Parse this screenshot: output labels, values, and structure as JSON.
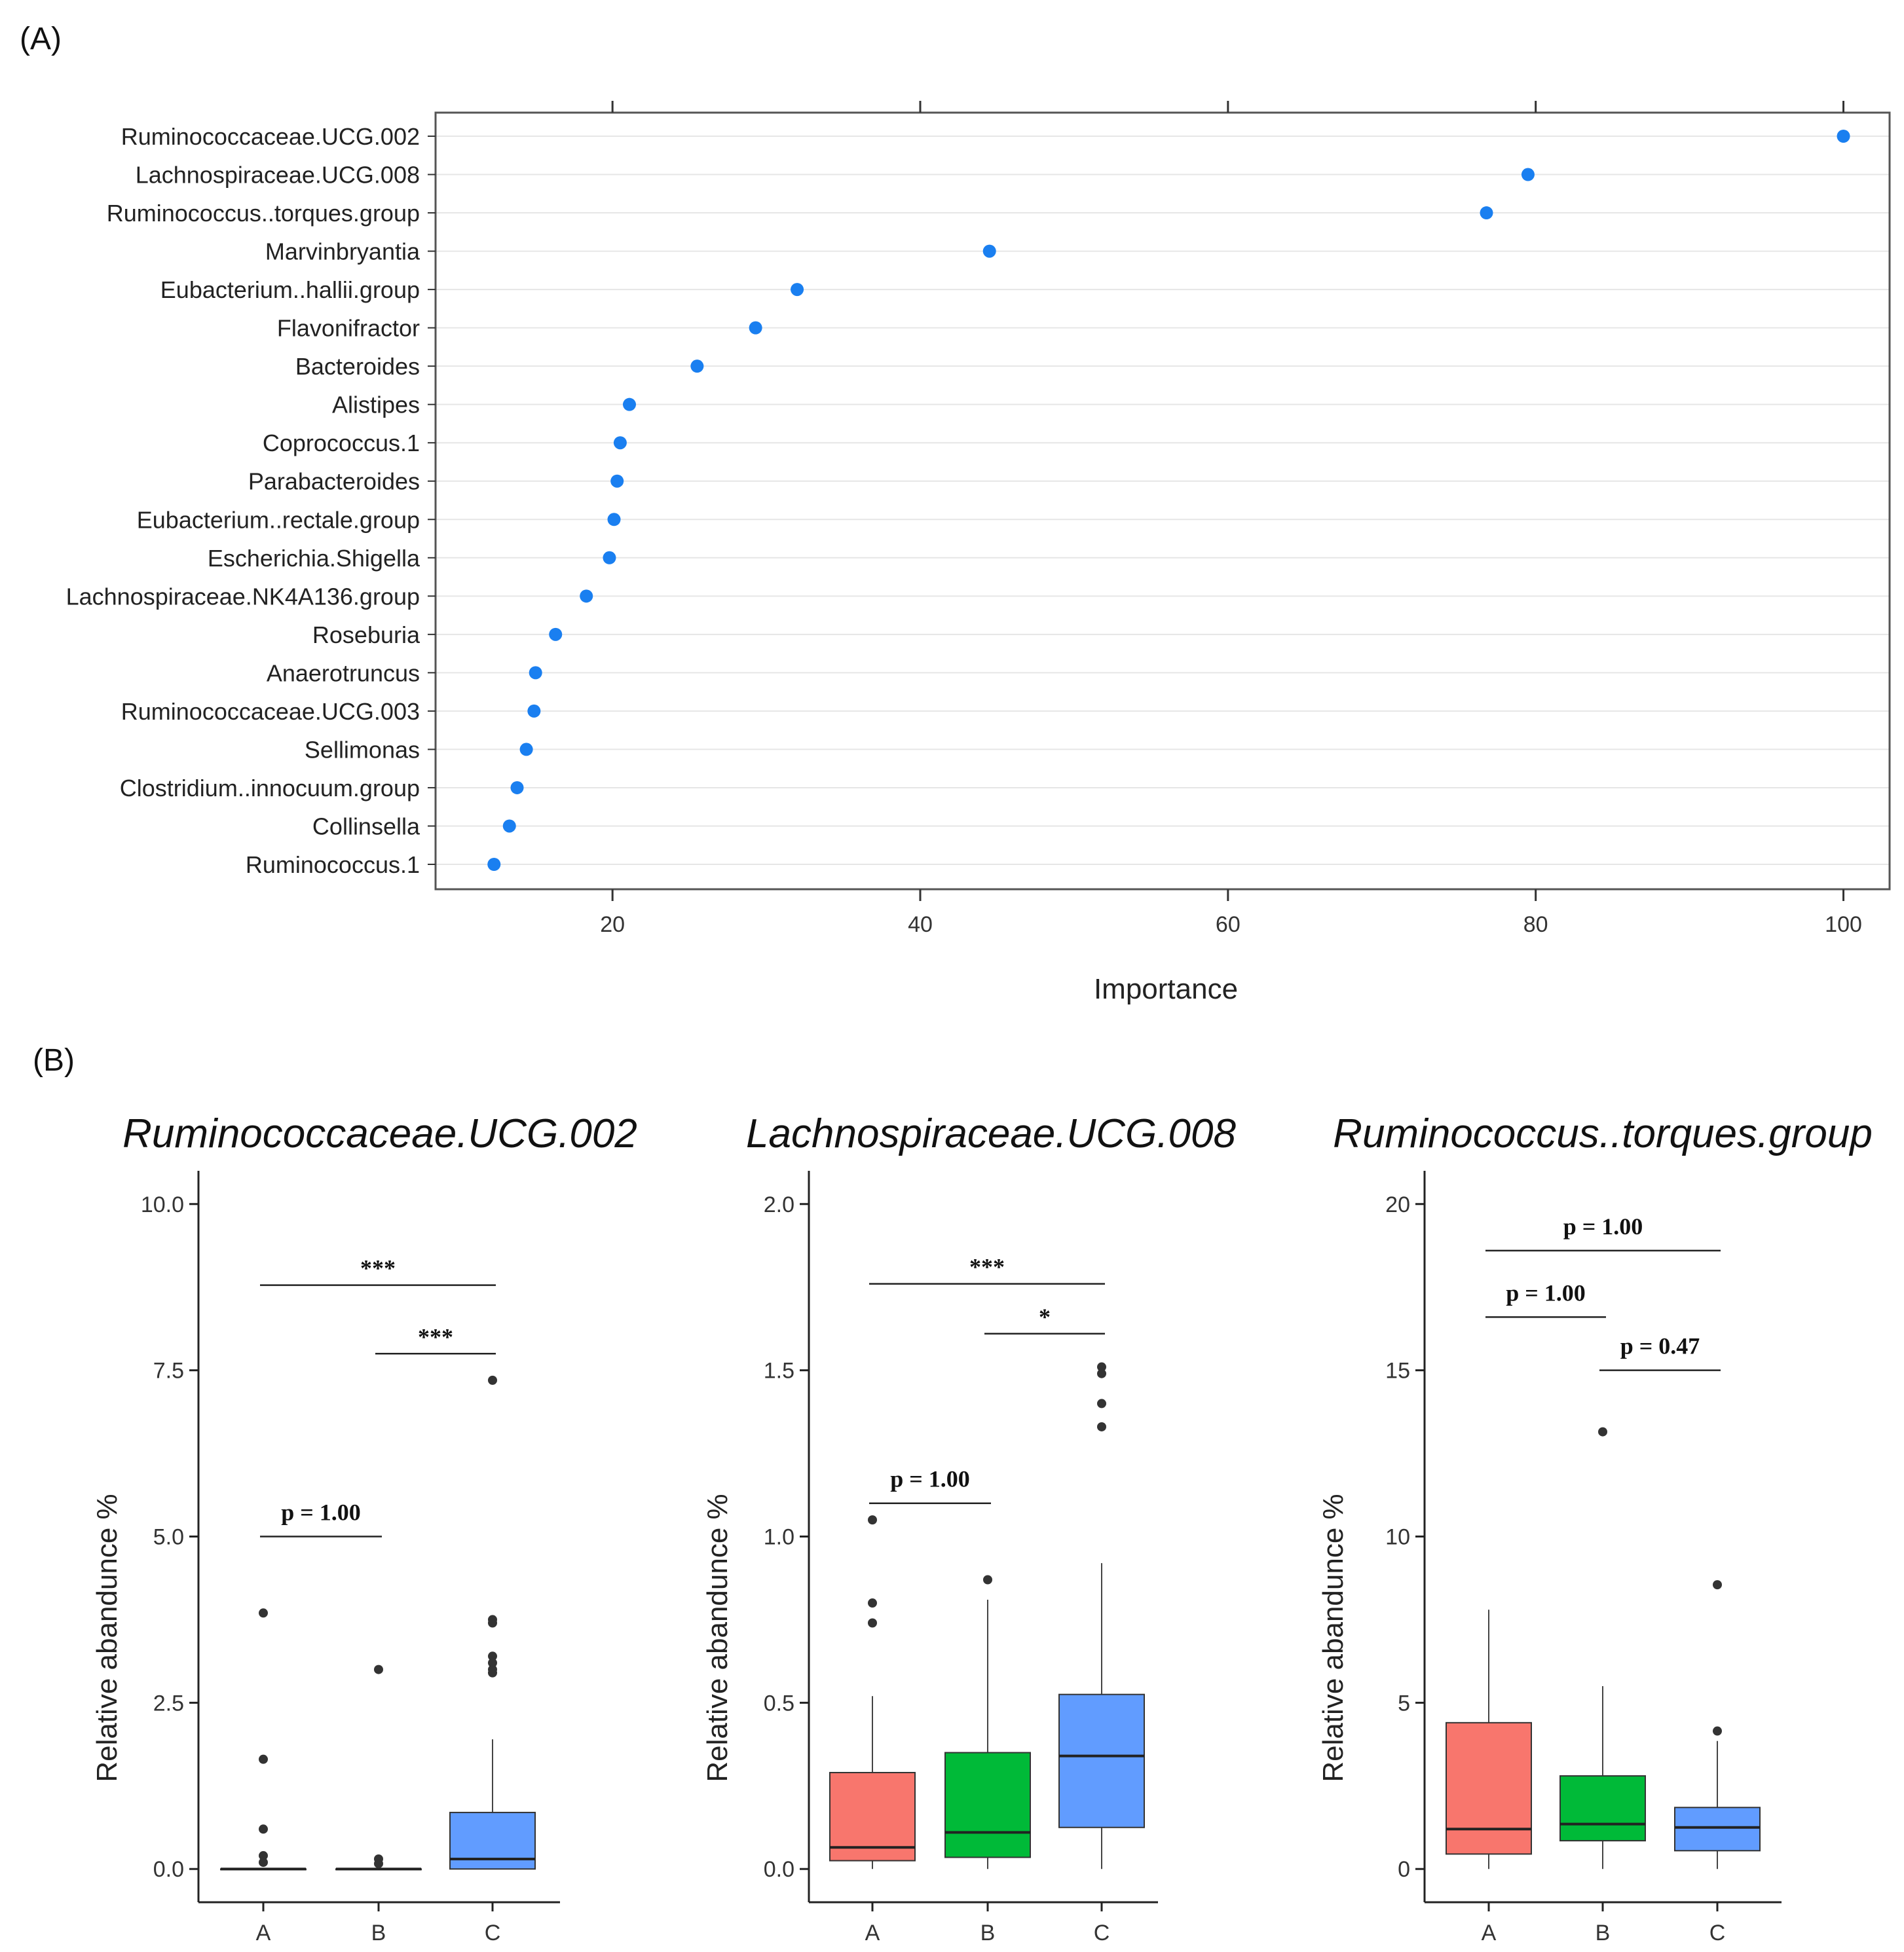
{
  "panelA": {
    "label": "(A)",
    "chart_data": {
      "type": "scatter",
      "xlabel": "Importance",
      "xlim": [
        8.5,
        103
      ],
      "xticks": [
        20,
        40,
        60,
        80,
        100
      ],
      "tick_labels": [
        "20",
        "40",
        "60",
        "80",
        "100"
      ],
      "categories": [
        "Ruminococcaceae.UCG.002",
        "Lachnospiraceae.UCG.008",
        "Ruminococcus..torques.group",
        "Marvinbryantia",
        "Eubacterium..hallii.group",
        "Flavonifractor",
        "Bacteroides",
        "Alistipes",
        "Coprococcus.1",
        "Parabacteroides",
        "Eubacterium..rectale.group",
        "Escherichia.Shigella",
        "Lachnospiraceae.NK4A136.group",
        "Roseburia",
        "Anaerotruncus",
        "Ruminococcaceae.UCG.003",
        "Sellimonas",
        "Clostridium..innocuum.group",
        "Collinsella",
        "Ruminococcus.1"
      ],
      "values": [
        100,
        79.5,
        76.8,
        44.5,
        32.0,
        29.3,
        25.5,
        21.1,
        20.5,
        20.3,
        20.1,
        19.8,
        18.3,
        16.3,
        15.0,
        14.9,
        14.4,
        13.8,
        13.3,
        12.3
      ],
      "point_color": "#1a7ff0"
    }
  },
  "panelB": {
    "label": "(B)",
    "chart_data": [
      {
        "type": "box",
        "title": "Ruminococcaceae.UCG.002",
        "ylabel": "Relative abandunce %",
        "ylim": [
          -0.5,
          10.5
        ],
        "yticks": [
          0,
          2.5,
          5,
          7.5,
          10
        ],
        "ytick_labels": [
          "0.0",
          "2.5",
          "5.0",
          "7.5",
          "10.0"
        ],
        "categories": [
          "A",
          "B",
          "C"
        ],
        "colors": [
          "#f8766d",
          "#00ba38",
          "#619cff"
        ],
        "boxes": [
          {
            "group": "A",
            "min": 0,
            "q1": 0,
            "median": 0,
            "q3": 0,
            "max": 0,
            "outliers": [
              3.85,
              1.65,
              0.6,
              0.2,
              0.1
            ]
          },
          {
            "group": "B",
            "min": 0,
            "q1": 0,
            "median": 0,
            "q3": 0,
            "max": 0,
            "outliers": [
              3.0,
              0.15,
              0.08
            ]
          },
          {
            "group": "C",
            "min": 0,
            "q1": 0,
            "median": 0.15,
            "q3": 0.85,
            "max": 1.95,
            "outliers": [
              7.35,
              3.75,
              3.7,
              3.2,
              3.1,
              3.0,
              2.95
            ]
          }
        ],
        "comparisons": [
          {
            "from": "A",
            "to": "B",
            "y": 5.0,
            "label": "p = 1.00",
            "kind": "p"
          },
          {
            "from": "B",
            "to": "C",
            "y": 7.75,
            "label": "***",
            "kind": "star"
          },
          {
            "from": "A",
            "to": "C",
            "y": 8.78,
            "label": "***",
            "kind": "star"
          }
        ]
      },
      {
        "type": "box",
        "title": "Lachnospiraceae.UCG.008",
        "ylabel": "Relative abandunce %",
        "ylim": [
          -0.1,
          2.1
        ],
        "yticks": [
          0,
          0.5,
          1.0,
          1.5,
          2.0
        ],
        "ytick_labels": [
          "0.0",
          "0.5",
          "1.0",
          "1.5",
          "2.0"
        ],
        "categories": [
          "A",
          "B",
          "C"
        ],
        "colors": [
          "#f8766d",
          "#00ba38",
          "#619cff"
        ],
        "boxes": [
          {
            "group": "A",
            "min": 0,
            "q1": 0.025,
            "median": 0.065,
            "q3": 0.29,
            "max": 0.52,
            "outliers": [
              1.05,
              0.8,
              0.74
            ]
          },
          {
            "group": "B",
            "min": 0,
            "q1": 0.035,
            "median": 0.11,
            "q3": 0.35,
            "max": 0.81,
            "outliers": [
              0.87
            ]
          },
          {
            "group": "C",
            "min": 0,
            "q1": 0.125,
            "median": 0.34,
            "q3": 0.525,
            "max": 0.92,
            "outliers": [
              1.51,
              1.49,
              1.4,
              1.33
            ]
          }
        ],
        "comparisons": [
          {
            "from": "A",
            "to": "B",
            "y": 1.1,
            "label": "p = 1.00",
            "kind": "p"
          },
          {
            "from": "B",
            "to": "C",
            "y": 1.61,
            "label": "*",
            "kind": "star"
          },
          {
            "from": "A",
            "to": "C",
            "y": 1.76,
            "label": "***",
            "kind": "star"
          }
        ]
      },
      {
        "type": "box",
        "title": "Ruminococcus..torques.group",
        "ylabel": "Relative abandunce %",
        "ylim": [
          -1,
          21
        ],
        "yticks": [
          0,
          5,
          10,
          15,
          20
        ],
        "ytick_labels": [
          "0",
          "5",
          "10",
          "15",
          "20"
        ],
        "categories": [
          "A",
          "B",
          "C"
        ],
        "colors": [
          "#f8766d",
          "#00ba38",
          "#619cff"
        ],
        "boxes": [
          {
            "group": "A",
            "min": 0,
            "q1": 0.45,
            "median": 1.2,
            "q3": 4.4,
            "max": 7.8,
            "outliers": []
          },
          {
            "group": "B",
            "min": 0,
            "q1": 0.85,
            "median": 1.35,
            "q3": 2.8,
            "max": 5.5,
            "outliers": [
              13.15
            ]
          },
          {
            "group": "C",
            "min": 0,
            "q1": 0.55,
            "median": 1.25,
            "q3": 1.85,
            "max": 3.85,
            "outliers": [
              8.55,
              4.15
            ]
          }
        ],
        "comparisons": [
          {
            "from": "A",
            "to": "B",
            "y": 16.6,
            "label": "p = 1.00",
            "kind": "p"
          },
          {
            "from": "B",
            "to": "C",
            "y": 15.0,
            "label": "p = 0.47",
            "kind": "p"
          },
          {
            "from": "A",
            "to": "C",
            "y": 18.6,
            "label": "p = 1.00",
            "kind": "p"
          }
        ]
      }
    ]
  }
}
